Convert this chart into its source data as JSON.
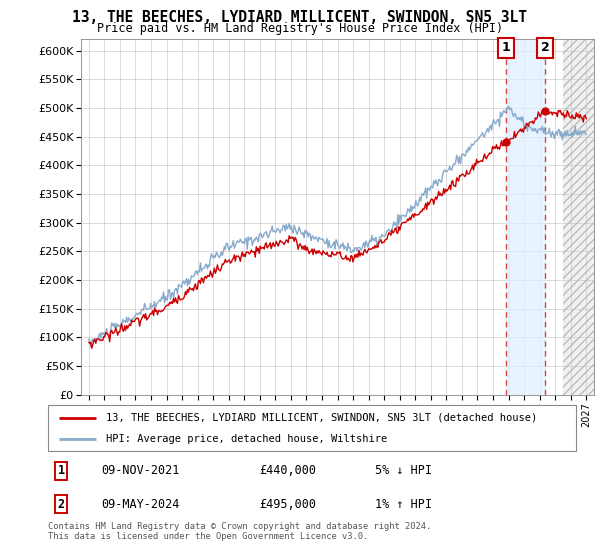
{
  "title": "13, THE BEECHES, LYDIARD MILLICENT, SWINDON, SN5 3LT",
  "subtitle": "Price paid vs. HM Land Registry's House Price Index (HPI)",
  "legend_label1": "13, THE BEECHES, LYDIARD MILLICENT, SWINDON, SN5 3LT (detached house)",
  "legend_label2": "HPI: Average price, detached house, Wiltshire",
  "transaction1_date": "09-NOV-2021",
  "transaction1_price": "£440,000",
  "transaction1_hpi": "5% ↓ HPI",
  "transaction2_date": "09-MAY-2024",
  "transaction2_price": "£495,000",
  "transaction2_hpi": "1% ↑ HPI",
  "copyright": "Contains HM Land Registry data © Crown copyright and database right 2024.\nThis data is licensed under the Open Government Licence v3.0.",
  "yticks": [
    0,
    50000,
    100000,
    150000,
    200000,
    250000,
    300000,
    350000,
    400000,
    450000,
    500000,
    550000,
    600000
  ],
  "ytick_labels": [
    "£0",
    "£50K",
    "£100K",
    "£150K",
    "£200K",
    "£250K",
    "£300K",
    "£350K",
    "£400K",
    "£450K",
    "£500K",
    "£550K",
    "£600K"
  ],
  "color_red": "#cc0000",
  "color_blue": "#88aacc",
  "transaction1_x": 2021.85,
  "transaction2_x": 2024.35,
  "transaction1_y": 440000,
  "transaction2_y": 495000,
  "xmin": 1994.5,
  "xmax": 2027.5,
  "hatch_start": 2025.5,
  "highlight_color": "#ddeeff",
  "vline_color": "#dd4444"
}
